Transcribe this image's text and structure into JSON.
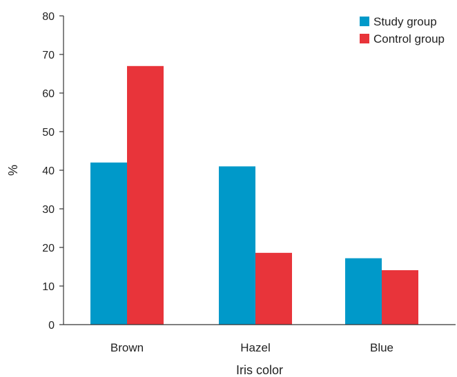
{
  "chart_data": {
    "type": "bar",
    "categories": [
      "Brown",
      "Hazel",
      "Blue"
    ],
    "series": [
      {
        "name": "Study group",
        "values": [
          42,
          41,
          17.2
        ],
        "color": "#0099c9"
      },
      {
        "name": "Control group",
        "values": [
          67,
          18.6,
          14.1
        ],
        "color": "#e8343a"
      }
    ],
    "xlabel": "Iris color",
    "ylabel": "%",
    "ylim": [
      0,
      80
    ],
    "yticks": [
      "0",
      "10",
      "20",
      "30",
      "40",
      "50",
      "60",
      "70",
      "80"
    ],
    "grid": false,
    "legend_position": "top-right"
  }
}
